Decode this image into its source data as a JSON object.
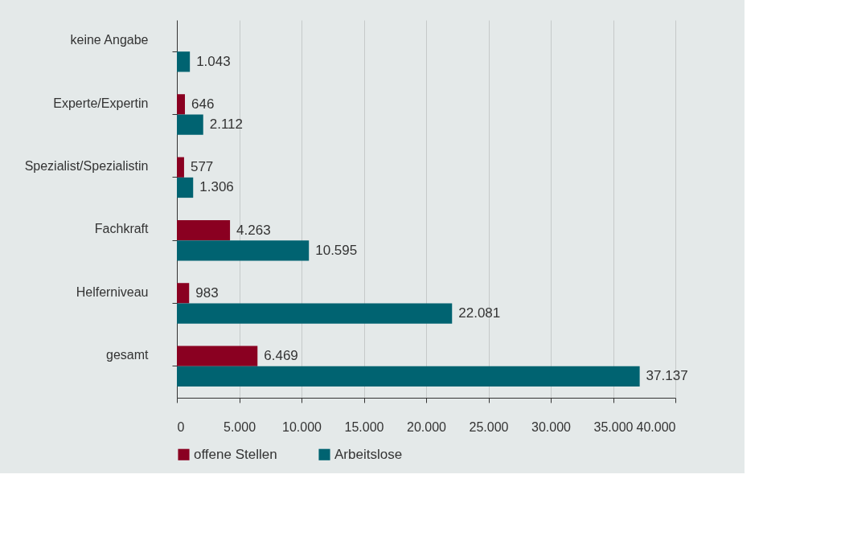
{
  "chart_data": {
    "type": "bar",
    "orientation": "horizontal",
    "categories": [
      "keine Angabe",
      "Experte/Expertin",
      "Spezialist/Spezialistin",
      "Fachkraft",
      "Helferniveau",
      "gesamt"
    ],
    "series": [
      {
        "name": "offene Stellen",
        "color": "#8a0021",
        "values": [
          null,
          646,
          577,
          4263,
          983,
          6469
        ],
        "value_labels": [
          null,
          "646",
          "577",
          "4.263",
          "983",
          "6.469"
        ]
      },
      {
        "name": "Arbeitslose",
        "color": "#006371",
        "values": [
          1043,
          2112,
          1306,
          10595,
          22081,
          37137
        ],
        "value_labels": [
          "1.043",
          "2.112",
          "1.306",
          "10.595",
          "22.081",
          "37.137"
        ]
      }
    ],
    "xlim": [
      0,
      40000
    ],
    "xticks": [
      0,
      {
        "value": 5000,
        "label": "5.000"
      },
      {
        "value": 10000,
        "label": "10.000"
      },
      {
        "value": 15000,
        "label": "15.000"
      },
      {
        "value": 20000,
        "label": "20.000"
      },
      {
        "value": 25000,
        "label": "25.000"
      },
      {
        "value": 30000,
        "label": "30.000"
      },
      {
        "value": 35000,
        "label": "35.000"
      },
      {
        "value": 40000,
        "label": "40.000"
      }
    ],
    "grid": "x",
    "legend": "bottom"
  }
}
